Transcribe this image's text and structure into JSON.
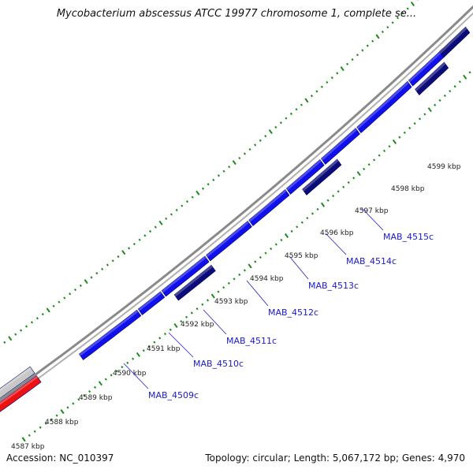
{
  "title": "Mycobacterium abscessus ATCC 19977 chromosome 1, complete se...",
  "footer": {
    "accession": "Accession: NC_010397",
    "summary": "Topology: circular; Length: 5,067,172 bp; Genes: 4,970"
  },
  "colors": {
    "backbone": "#888888",
    "gene_forward": "#1010ee",
    "gene_dark": "#0b0b7a",
    "gene_highlight": "#ee1111",
    "gene_grey": "#c8c8c8",
    "tick": "#1a8a1a",
    "label": "#1a1acc"
  },
  "kbp_ticks": [
    {
      "label": "4587 kbp"
    },
    {
      "label": "4588 kbp"
    },
    {
      "label": "4589 kbp"
    },
    {
      "label": "4590 kbp"
    },
    {
      "label": "4591 kbp"
    },
    {
      "label": "4592 kbp"
    },
    {
      "label": "4593 kbp"
    },
    {
      "label": "4594 kbp"
    },
    {
      "label": "4595 kbp"
    },
    {
      "label": "4596 kbp"
    },
    {
      "label": "4597 kbp"
    },
    {
      "label": "4598 kbp"
    },
    {
      "label": "4599 kbp"
    }
  ],
  "gene_labels": [
    "MAB_4509c",
    "MAB_4510c",
    "MAB_4511c",
    "MAB_4512c",
    "MAB_4513c",
    "MAB_4514c",
    "MAB_4515c"
  ]
}
